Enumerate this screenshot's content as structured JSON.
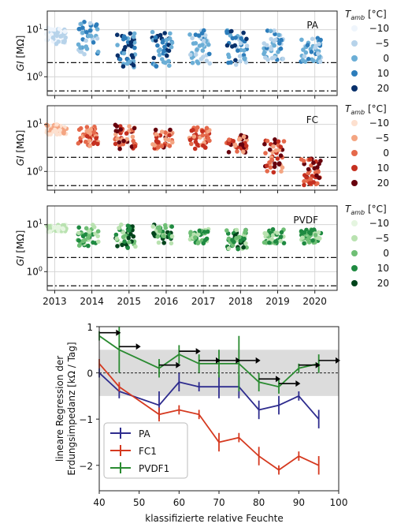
{
  "chart_data": [
    {
      "type": "scatter",
      "panel": "PA",
      "series_label": "PA",
      "label_color": "#2b3a8c",
      "ylabel": "GI [MΩ]",
      "yscale": "log",
      "ylim": [
        0.4,
        25
      ],
      "yticks": [
        {
          "v": 1,
          "t": "10⁰"
        },
        {
          "v": 10,
          "t": "10¹"
        }
      ],
      "xlim": [
        2012.8,
        2020.6
      ],
      "xticks": [
        "2013",
        "2014",
        "2015",
        "2016",
        "2017",
        "2018",
        "2019",
        "2020"
      ],
      "hlines": [
        2,
        0.5
      ],
      "colors": [
        "#eff5fc",
        "#b7d3ea",
        "#6baed6",
        "#2d7dbb",
        "#08306b"
      ],
      "legend_title": "T_amb [°C]",
      "legend_values": [
        "−10",
        "−5",
        "0",
        "10",
        "20"
      ],
      "clusters": [
        {
          "x": 2013.05,
          "lo": 5,
          "hi": 11,
          "c": [
            0,
            1
          ]
        },
        {
          "x": 2013.9,
          "lo": 3,
          "hi": 15,
          "c": [
            1,
            2,
            3
          ]
        },
        {
          "x": 2014.9,
          "lo": 1.6,
          "hi": 9,
          "c": [
            2,
            3,
            4
          ]
        },
        {
          "x": 2015.9,
          "lo": 1.6,
          "hi": 9,
          "c": [
            2,
            3,
            4
          ]
        },
        {
          "x": 2016.9,
          "lo": 1.8,
          "hi": 10,
          "c": [
            1,
            2,
            3
          ]
        },
        {
          "x": 2017.9,
          "lo": 1.8,
          "hi": 10,
          "c": [
            1,
            2,
            3,
            4
          ]
        },
        {
          "x": 2018.9,
          "lo": 2.2,
          "hi": 10,
          "c": [
            1,
            2,
            3
          ]
        },
        {
          "x": 2019.9,
          "lo": 2,
          "hi": 7,
          "c": [
            1,
            2,
            3
          ]
        }
      ]
    },
    {
      "type": "scatter",
      "panel": "FC",
      "series_label": "FC",
      "label_color": "#d8442a",
      "ylabel": "GI [MΩ]",
      "yscale": "log",
      "ylim": [
        0.4,
        25
      ],
      "yticks": [
        {
          "v": 1,
          "t": "10⁰"
        },
        {
          "v": 10,
          "t": "10¹"
        }
      ],
      "xlim": [
        2012.8,
        2020.6
      ],
      "xticks": [
        "2013",
        "2014",
        "2015",
        "2016",
        "2017",
        "2018",
        "2019",
        "2020"
      ],
      "hlines": [
        2,
        0.5
      ],
      "colors": [
        "#fde0cf",
        "#f4a582",
        "#e5694b",
        "#c53020",
        "#67000d"
      ],
      "legend_title": "T_amb [°C]",
      "legend_values": [
        "−10",
        "−5",
        "0",
        "10",
        "20"
      ],
      "clusters": [
        {
          "x": 2013.05,
          "lo": 6,
          "hi": 10,
          "c": [
            0,
            1
          ]
        },
        {
          "x": 2013.9,
          "lo": 3.5,
          "hi": 9,
          "c": [
            1,
            2,
            3
          ]
        },
        {
          "x": 2014.9,
          "lo": 3,
          "hi": 10,
          "c": [
            1,
            2,
            3,
            4
          ]
        },
        {
          "x": 2015.9,
          "lo": 3,
          "hi": 8,
          "c": [
            1,
            2,
            3,
            4
          ]
        },
        {
          "x": 2016.9,
          "lo": 3,
          "hi": 9,
          "c": [
            1,
            2,
            3
          ]
        },
        {
          "x": 2017.9,
          "lo": 2.5,
          "hi": 6,
          "c": [
            1,
            2,
            3,
            4
          ]
        },
        {
          "x": 2018.9,
          "lo": 0.9,
          "hi": 5,
          "c": [
            1,
            2,
            3,
            4
          ]
        },
        {
          "x": 2019.9,
          "lo": 0.5,
          "hi": 2,
          "c": [
            2,
            3,
            4
          ]
        }
      ]
    },
    {
      "type": "scatter",
      "panel": "PVDF",
      "series_label": "PVDF",
      "label_color": "#238b45",
      "ylabel": "GI [MΩ]",
      "yscale": "log",
      "ylim": [
        0.4,
        25
      ],
      "yticks": [
        {
          "v": 1,
          "t": "10⁰"
        },
        {
          "v": 10,
          "t": "10¹"
        }
      ],
      "xlim": [
        2012.8,
        2020.6
      ],
      "xticks": [
        "2013",
        "2014",
        "2015",
        "2016",
        "2017",
        "2018",
        "2019",
        "2020"
      ],
      "hlines": [
        2,
        0.5
      ],
      "colors": [
        "#e5f5e0",
        "#b9e2b0",
        "#6fbf75",
        "#1f8a41",
        "#00441b"
      ],
      "legend_title": "T_amb [°C]",
      "legend_values": [
        "−10",
        "−5",
        "0",
        "10",
        "20"
      ],
      "clusters": [
        {
          "x": 2013.05,
          "lo": 7,
          "hi": 10,
          "c": [
            0,
            1
          ]
        },
        {
          "x": 2013.9,
          "lo": 3.5,
          "hi": 10,
          "c": [
            1,
            2,
            3
          ]
        },
        {
          "x": 2014.9,
          "lo": 3,
          "hi": 10,
          "c": [
            1,
            2,
            3,
            4
          ]
        },
        {
          "x": 2015.9,
          "lo": 4,
          "hi": 10,
          "c": [
            1,
            2,
            3,
            4
          ]
        },
        {
          "x": 2016.9,
          "lo": 4,
          "hi": 8,
          "c": [
            1,
            2,
            3
          ]
        },
        {
          "x": 2017.9,
          "lo": 3,
          "hi": 8,
          "c": [
            1,
            2,
            3,
            4
          ]
        },
        {
          "x": 2018.9,
          "lo": 4,
          "hi": 8,
          "c": [
            1,
            2,
            3
          ]
        },
        {
          "x": 2019.9,
          "lo": 4,
          "hi": 8,
          "c": [
            1,
            2,
            3
          ]
        }
      ]
    },
    {
      "type": "line",
      "xlabel": "klassifizierte relative Feuchte",
      "ylabel_line1": "lineare Regression der",
      "ylabel_line2": "Erdungsimpedanz [kΩ / Tag]",
      "xlim": [
        40,
        100
      ],
      "ylim": [
        -2.55,
        1.0
      ],
      "xticks": [
        40,
        50,
        60,
        70,
        80,
        90,
        100
      ],
      "yticks": [
        1,
        0,
        -1,
        -2
      ],
      "band": [
        -0.5,
        0.5
      ],
      "zero_dashed": true,
      "legend_position": "bottom-left",
      "series": [
        {
          "name": "PA",
          "color": "#2e2c8e",
          "x": [
            40,
            45,
            55,
            60,
            65,
            70,
            75,
            80,
            85,
            90,
            95
          ],
          "y": [
            0,
            -0.4,
            -0.7,
            -0.2,
            -0.3,
            -0.3,
            -0.3,
            -0.8,
            -0.7,
            -0.5,
            -1.0
          ],
          "err": [
            0.1,
            0.15,
            0.3,
            0.2,
            0.1,
            0.25,
            0.25,
            0.2,
            0.2,
            0.1,
            0.2
          ]
        },
        {
          "name": "FC1",
          "color": "#d5391f",
          "x": [
            40,
            45,
            55,
            60,
            65,
            70,
            75,
            80,
            85,
            90,
            95
          ],
          "y": [
            0.2,
            -0.3,
            -0.9,
            -0.8,
            -0.9,
            -1.5,
            -1.4,
            -1.8,
            -2.1,
            -1.8,
            -2.0
          ],
          "err": [
            0.1,
            0.1,
            0.15,
            0.1,
            0.1,
            0.2,
            0.1,
            0.2,
            0.1,
            0.1,
            0.2
          ]
        },
        {
          "name": "PVDF1",
          "color": "#2a8b31",
          "x": [
            40,
            45,
            55,
            60,
            65,
            70,
            75,
            80,
            85,
            90,
            95
          ],
          "y": [
            0.8,
            0.5,
            0.1,
            0.4,
            0.2,
            0.2,
            0.2,
            -0.2,
            -0.3,
            0.1,
            0.2
          ],
          "err": [
            0.1,
            0.5,
            0.2,
            0.2,
            0.2,
            0.3,
            0.6,
            0.2,
            0.15,
            0.1,
            0.2
          ]
        }
      ],
      "arrows": [
        {
          "x": 40,
          "y": 0.8
        },
        {
          "x": 45,
          "y": 0.5
        },
        {
          "x": 55,
          "y": 0.1
        },
        {
          "x": 60,
          "y": 0.4
        },
        {
          "x": 65,
          "y": 0.2
        },
        {
          "x": 70,
          "y": 0.2
        },
        {
          "x": 75,
          "y": 0.2
        },
        {
          "x": 80,
          "y": -0.2
        },
        {
          "x": 85,
          "y": -0.3
        },
        {
          "x": 90,
          "y": 0.1
        },
        {
          "x": 95,
          "y": 0.2
        }
      ]
    }
  ]
}
